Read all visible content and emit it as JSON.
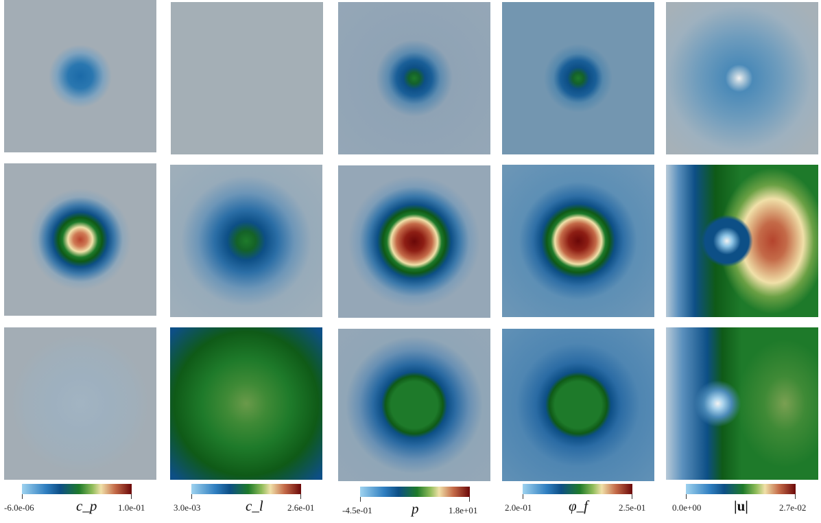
{
  "colorbars": [
    {
      "variable": "c_p",
      "min_label": "-6.0e-06",
      "max_label": "1.0e-01"
    },
    {
      "variable": "c_l",
      "min_label": "3.0e-03",
      "max_label": "2.6e-01"
    },
    {
      "variable": "p",
      "min_label": "-4.5e-01",
      "max_label": "1.8e+01"
    },
    {
      "variable": "φ_f",
      "min_label": "2.0e-01",
      "max_label": "2.5e-01"
    },
    {
      "variable": "|u|",
      "min_label": "0.0e+00",
      "max_label": "2.7e-02"
    }
  ],
  "colors": {
    "background": "#a3adb5",
    "deep_blue": "#0d4f86",
    "light_blue": "#9ed2ef",
    "green": "#1e7a2a",
    "dark_green": "#0f5a17",
    "cream": "#f0e0a8",
    "red": "#b5442d",
    "dark_red": "#6b0808"
  }
}
